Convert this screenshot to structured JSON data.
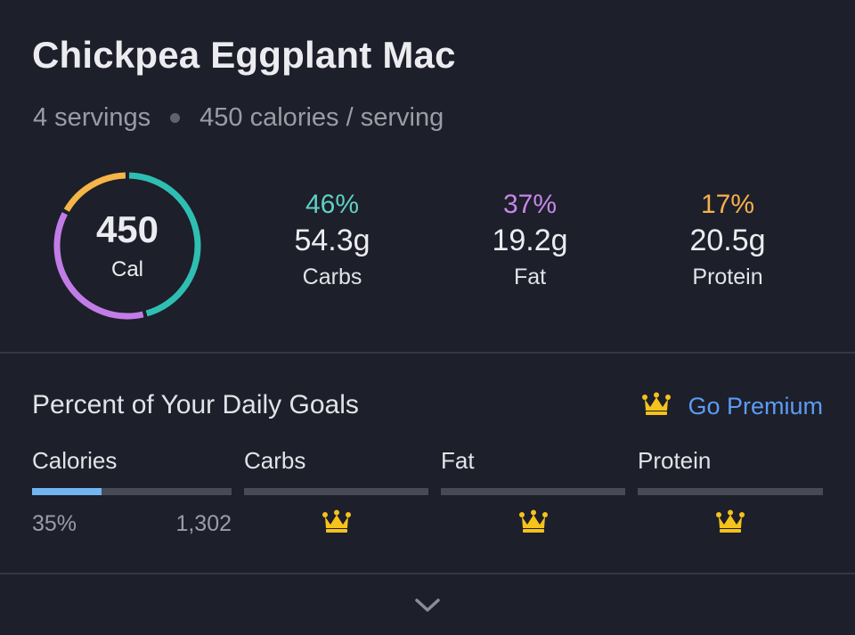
{
  "recipe": {
    "title": "Chickpea Eggplant Mac",
    "servings": "4 servings",
    "calories_per_serving": "450 calories / serving"
  },
  "summary": {
    "calories_value": "450",
    "calories_unit": "Cal",
    "ring_segments": [
      {
        "macro": "carbs",
        "fraction": 0.46,
        "color": "#2ebfb2"
      },
      {
        "macro": "fat",
        "fraction": 0.37,
        "color": "#c27ce6"
      },
      {
        "macro": "protein",
        "fraction": 0.17,
        "color": "#f5b547"
      }
    ],
    "macros": [
      {
        "pct": "46%",
        "grams": "54.3g",
        "label": "Carbs",
        "color": "#5fd0c4"
      },
      {
        "pct": "37%",
        "grams": "19.2g",
        "label": "Fat",
        "color": "#c587e8"
      },
      {
        "pct": "17%",
        "grams": "20.5g",
        "label": "Protein",
        "color": "#f5b14f"
      }
    ]
  },
  "goals": {
    "title": "Percent of Your Daily Goals",
    "premium_label": "Go Premium",
    "premium_icon": "crown-icon",
    "accent_color": "#5b9cf5",
    "crown_color": "#f6c21c",
    "columns": [
      {
        "label": "Calories",
        "progress": 0.35,
        "percent": "35%",
        "goal": "1,302",
        "locked": false
      },
      {
        "label": "Carbs",
        "locked": true
      },
      {
        "label": "Fat",
        "locked": true
      },
      {
        "label": "Protein",
        "locked": true
      }
    ]
  },
  "footer": {
    "expand_icon": "chevron-down-icon"
  }
}
